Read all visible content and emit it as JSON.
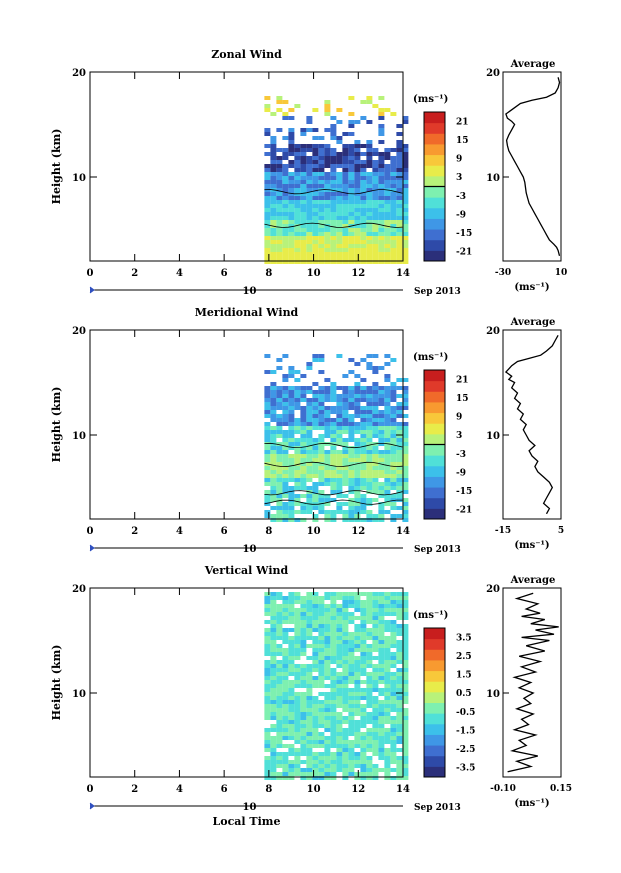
{
  "chart_data": [
    {
      "type": "heatmap",
      "title": "Zonal Wind",
      "ylabel": "Height (km)",
      "xlim": [
        0,
        14
      ],
      "ylim": [
        2,
        20
      ],
      "xticks": [
        "0",
        "2",
        "4",
        "6",
        "8",
        "10",
        "12",
        "14"
      ],
      "yticks": [
        "10",
        "20"
      ],
      "date_marker": {
        "label": "10",
        "month_label": "Sep 2013"
      },
      "data_x_range": [
        7.8,
        14
      ],
      "colorbar": {
        "unit": "(ms⁻¹)",
        "ticks": [
          "21",
          "15",
          "9",
          "3",
          "-3",
          "-9",
          "-15",
          "-21"
        ],
        "min": -24,
        "max": 24,
        "colors": [
          "#2b2f7a",
          "#2e4aa8",
          "#3f6fd0",
          "#3f97e6",
          "#3cc0ea",
          "#50e0d8",
          "#7ef0b0",
          "#b8f27a",
          "#e8ec4a",
          "#f8c83a",
          "#f89a30",
          "#f06a2a",
          "#e03a2a",
          "#c81e1e"
        ],
        "zero_line": true
      },
      "profile": {
        "title": "Average",
        "xlabel": "(ms⁻¹)",
        "xticks": [
          "-30",
          "10"
        ],
        "xlim": [
          -30,
          10
        ],
        "yticks": [
          "10",
          "20"
        ],
        "ylim": [
          2,
          20
        ],
        "x": [
          9,
          8,
          7,
          5,
          2,
          0,
          -2,
          -4,
          -6,
          -8,
          -10,
          -12,
          -13,
          -14,
          -14.5,
          -15,
          -16,
          -18,
          -20,
          -22,
          -24,
          -26,
          -27,
          -27.5,
          -26,
          -24,
          -22,
          -24,
          -27,
          -28,
          -25,
          -22,
          -18,
          -10,
          0,
          6,
          8,
          9,
          8
        ],
        "y": [
          2.5,
          3,
          3.3,
          3.6,
          4,
          4.5,
          5,
          5.5,
          6,
          6.5,
          7,
          7.5,
          8,
          8.5,
          9,
          9.5,
          10,
          10.5,
          11,
          11.5,
          12,
          12.5,
          13,
          13.5,
          14,
          14.5,
          15,
          15.3,
          15.6,
          16,
          16.3,
          16.6,
          17,
          17.3,
          17.6,
          18,
          18.5,
          19,
          19.5
        ]
      }
    },
    {
      "type": "heatmap",
      "title": "Meridional Wind",
      "ylabel": "Height (km)",
      "xlim": [
        0,
        14
      ],
      "ylim": [
        2,
        20
      ],
      "xticks": [
        "0",
        "2",
        "4",
        "6",
        "8",
        "10",
        "12",
        "14"
      ],
      "yticks": [
        "10",
        "20"
      ],
      "date_marker": {
        "label": "10",
        "month_label": "Sep 2013"
      },
      "data_x_range": [
        7.8,
        14
      ],
      "colorbar": {
        "unit": "(ms⁻¹)",
        "ticks": [
          "21",
          "15",
          "9",
          "3",
          "-3",
          "-9",
          "-15",
          "-21"
        ],
        "min": -24,
        "max": 24,
        "colors": [
          "#2b2f7a",
          "#2e4aa8",
          "#3f6fd0",
          "#3f97e6",
          "#3cc0ea",
          "#50e0d8",
          "#7ef0b0",
          "#b8f27a",
          "#e8ec4a",
          "#f8c83a",
          "#f89a30",
          "#f06a2a",
          "#e03a2a",
          "#c81e1e"
        ],
        "zero_line": true
      },
      "profile": {
        "title": "Average",
        "xlabel": "(ms⁻¹)",
        "xticks": [
          "-15",
          "5"
        ],
        "xlim": [
          -15,
          5
        ],
        "yticks": [
          "10",
          "20"
        ],
        "ylim": [
          2,
          20
        ],
        "x": [
          0,
          1,
          -1,
          0,
          1,
          2,
          1,
          -1,
          -3,
          -4,
          -3,
          -5,
          -6,
          -4,
          -6,
          -7,
          -8,
          -7,
          -9,
          -8,
          -10,
          -9,
          -11,
          -10,
          -12,
          -11,
          -13,
          -12,
          -14,
          -13,
          -12,
          -10,
          -6,
          -2,
          0,
          2,
          3,
          4
        ],
        "y": [
          2.5,
          3,
          3.5,
          4,
          4.5,
          5,
          5.5,
          6,
          6.5,
          7,
          7.5,
          8,
          8.5,
          9,
          9.5,
          10,
          10.5,
          11,
          11.5,
          12,
          12.5,
          13,
          13.5,
          14,
          14.5,
          15,
          15.3,
          15.6,
          16,
          16.3,
          16.6,
          17,
          17.3,
          17.6,
          18,
          18.5,
          19,
          19.5
        ]
      }
    },
    {
      "type": "heatmap",
      "title": "Vertical Wind",
      "ylabel": "Height (km)",
      "xlabel": "Local Time",
      "xlim": [
        0,
        14
      ],
      "ylim": [
        2,
        20
      ],
      "xticks": [
        "0",
        "2",
        "4",
        "6",
        "8",
        "10",
        "12",
        "14"
      ],
      "yticks": [
        "10",
        "20"
      ],
      "date_marker": {
        "label": "10",
        "month_label": "Sep 2013"
      },
      "data_x_range": [
        7.8,
        14
      ],
      "colorbar": {
        "unit": "(ms⁻¹)",
        "ticks": [
          "3.5",
          "2.5",
          "1.5",
          "0.5",
          "-0.5",
          "-1.5",
          "-2.5",
          "-3.5"
        ],
        "min": -4,
        "max": 4,
        "colors": [
          "#2b2f7a",
          "#2e4aa8",
          "#3f6fd0",
          "#3f97e6",
          "#3cc0ea",
          "#50e0d8",
          "#7ef0b0",
          "#b8f27a",
          "#e8ec4a",
          "#f8c83a",
          "#f89a30",
          "#f06a2a",
          "#e03a2a",
          "#c81e1e"
        ],
        "zero_line": false
      },
      "profile": {
        "title": "Average",
        "xlabel": "(ms⁻¹)",
        "xticks": [
          "-0.10",
          "0.15"
        ],
        "xlim": [
          -0.1,
          0.15
        ],
        "yticks": [
          "10",
          "20"
        ],
        "ylim": [
          2,
          20
        ],
        "x": [
          -0.08,
          0.02,
          -0.04,
          0.05,
          -0.06,
          0.0,
          -0.03,
          0.04,
          -0.05,
          0.01,
          -0.02,
          0.03,
          -0.04,
          0.02,
          -0.01,
          0.03,
          -0.03,
          0.02,
          -0.05,
          0.04,
          -0.02,
          0.06,
          -0.03,
          0.08,
          0.0,
          0.1,
          -0.02,
          0.12,
          0.04,
          0.14,
          0.02,
          0.08,
          -0.02,
          0.06,
          0.0,
          0.05,
          -0.04,
          0.03
        ],
        "y": [
          2.5,
          3,
          3.5,
          4,
          4.5,
          5,
          5.5,
          6,
          6.5,
          7,
          7.5,
          8,
          8.5,
          9,
          9.5,
          10,
          10.5,
          11,
          11.5,
          12,
          12.5,
          13,
          13.5,
          14,
          14.5,
          15,
          15.3,
          15.6,
          16,
          16.3,
          16.6,
          17,
          17.3,
          17.6,
          18,
          18.5,
          19,
          19.5
        ]
      }
    }
  ]
}
